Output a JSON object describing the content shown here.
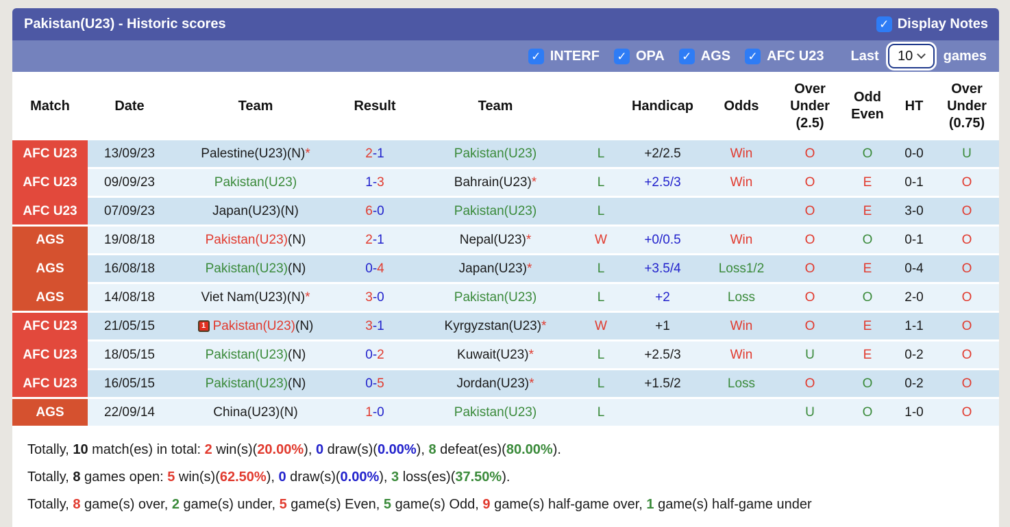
{
  "colors": {
    "black": "#1a1a1a",
    "red": "#e13a2e",
    "green": "#3a8a3a",
    "blue": "#2222cc",
    "badge_afc": "#e2493c",
    "badge_ags": "#d5512f",
    "row_dark": "#cfe3f1",
    "row_light": "#e9f3fa",
    "bar_dark": "#4d58a4",
    "bar_light": "#7482bd",
    "checkbox_blue": "#2e7cf5"
  },
  "header": {
    "title": "Pakistan(U23) - Historic scores",
    "display_notes_label": "Display Notes",
    "display_notes_checked": true,
    "check_glyph": "✓"
  },
  "filters": {
    "items": [
      {
        "label": "INTERF",
        "checked": true
      },
      {
        "label": "OPA",
        "checked": true
      },
      {
        "label": "AGS",
        "checked": true
      },
      {
        "label": "AFC U23",
        "checked": true
      }
    ],
    "last_label": "Last",
    "last_games_value": "10",
    "games_label": "games"
  },
  "table": {
    "columns": [
      "Match",
      "Date",
      "Team",
      "Result",
      "Team",
      "",
      "Handicap",
      "Odds",
      "Over Under (2.5)",
      "Odd Even",
      "HT",
      "Over Under (0.75)"
    ],
    "rows": [
      {
        "match": "AFC U23",
        "group": "afc",
        "date": "13/09/23",
        "team1": [
          {
            "t": "Palestine(U23)(N)",
            "c": "black"
          },
          {
            "t": "*",
            "c": "red"
          }
        ],
        "result": {
          "home": {
            "t": "2",
            "c": "red"
          },
          "away": {
            "t": "1",
            "c": "blue"
          }
        },
        "team2": [
          {
            "t": "Pakistan(U23)",
            "c": "green"
          }
        ],
        "wl": {
          "t": "L",
          "c": "green"
        },
        "handicap": {
          "t": "+2/2.5",
          "c": "black"
        },
        "odds": {
          "t": "Win",
          "c": "red"
        },
        "ou25": {
          "t": "O",
          "c": "red"
        },
        "odd_even": {
          "t": "O",
          "c": "green"
        },
        "ht": "0-0",
        "ou075": {
          "t": "U",
          "c": "green"
        }
      },
      {
        "match": "AFC U23",
        "group": "afc",
        "date": "09/09/23",
        "team1": [
          {
            "t": "Pakistan(U23)",
            "c": "green"
          }
        ],
        "result": {
          "home": {
            "t": "1",
            "c": "blue"
          },
          "away": {
            "t": "3",
            "c": "red"
          }
        },
        "team2": [
          {
            "t": "Bahrain(U23)",
            "c": "black"
          },
          {
            "t": "*",
            "c": "red"
          }
        ],
        "wl": {
          "t": "L",
          "c": "green"
        },
        "handicap": {
          "t": "+2.5/3",
          "c": "blue"
        },
        "odds": {
          "t": "Win",
          "c": "red"
        },
        "ou25": {
          "t": "O",
          "c": "red"
        },
        "odd_even": {
          "t": "E",
          "c": "red"
        },
        "ht": "0-1",
        "ou075": {
          "t": "O",
          "c": "red"
        }
      },
      {
        "match": "AFC U23",
        "group": "afc",
        "date": "07/09/23",
        "team1": [
          {
            "t": "Japan(U23)(N)",
            "c": "black"
          }
        ],
        "result": {
          "home": {
            "t": "6",
            "c": "red"
          },
          "away": {
            "t": "0",
            "c": "blue"
          }
        },
        "team2": [
          {
            "t": "Pakistan(U23)",
            "c": "green"
          }
        ],
        "wl": {
          "t": "L",
          "c": "green"
        },
        "handicap": {
          "t": "",
          "c": "black"
        },
        "odds": {
          "t": "",
          "c": "black"
        },
        "ou25": {
          "t": "O",
          "c": "red"
        },
        "odd_even": {
          "t": "E",
          "c": "red"
        },
        "ht": "3-0",
        "ou075": {
          "t": "O",
          "c": "red"
        }
      },
      {
        "match": "AGS",
        "group": "ags",
        "date": "19/08/18",
        "team1": [
          {
            "t": "Pakistan(U23)",
            "c": "red"
          },
          {
            "t": "(N)",
            "c": "black"
          }
        ],
        "result": {
          "home": {
            "t": "2",
            "c": "red"
          },
          "away": {
            "t": "1",
            "c": "blue"
          }
        },
        "team2": [
          {
            "t": "Nepal(U23)",
            "c": "black"
          },
          {
            "t": "*",
            "c": "red"
          }
        ],
        "wl": {
          "t": "W",
          "c": "red"
        },
        "handicap": {
          "t": "+0/0.5",
          "c": "blue"
        },
        "odds": {
          "t": "Win",
          "c": "red"
        },
        "ou25": {
          "t": "O",
          "c": "red"
        },
        "odd_even": {
          "t": "O",
          "c": "green"
        },
        "ht": "0-1",
        "ou075": {
          "t": "O",
          "c": "red"
        }
      },
      {
        "match": "AGS",
        "group": "ags",
        "date": "16/08/18",
        "team1": [
          {
            "t": "Pakistan(U23)",
            "c": "green"
          },
          {
            "t": "(N)",
            "c": "black"
          }
        ],
        "result": {
          "home": {
            "t": "0",
            "c": "blue"
          },
          "away": {
            "t": "4",
            "c": "red"
          }
        },
        "team2": [
          {
            "t": "Japan(U23)",
            "c": "black"
          },
          {
            "t": "*",
            "c": "red"
          }
        ],
        "wl": {
          "t": "L",
          "c": "green"
        },
        "handicap": {
          "t": "+3.5/4",
          "c": "blue"
        },
        "odds": {
          "t": "Loss1/2",
          "c": "green"
        },
        "ou25": {
          "t": "O",
          "c": "red"
        },
        "odd_even": {
          "t": "E",
          "c": "red"
        },
        "ht": "0-4",
        "ou075": {
          "t": "O",
          "c": "red"
        }
      },
      {
        "match": "AGS",
        "group": "ags",
        "date": "14/08/18",
        "team1": [
          {
            "t": "Viet Nam(U23)(N)",
            "c": "black"
          },
          {
            "t": "*",
            "c": "red"
          }
        ],
        "result": {
          "home": {
            "t": "3",
            "c": "red"
          },
          "away": {
            "t": "0",
            "c": "blue"
          }
        },
        "team2": [
          {
            "t": "Pakistan(U23)",
            "c": "green"
          }
        ],
        "wl": {
          "t": "L",
          "c": "green"
        },
        "handicap": {
          "t": "+2",
          "c": "blue"
        },
        "odds": {
          "t": "Loss",
          "c": "green"
        },
        "ou25": {
          "t": "O",
          "c": "red"
        },
        "odd_even": {
          "t": "O",
          "c": "green"
        },
        "ht": "2-0",
        "ou075": {
          "t": "O",
          "c": "red"
        }
      },
      {
        "match": "AFC U23",
        "group": "afc",
        "date": "21/05/15",
        "team1": [
          {
            "icon": "red-card",
            "t": "1"
          },
          {
            "t": "Pakistan(U23)",
            "c": "red"
          },
          {
            "t": "(N)",
            "c": "black"
          }
        ],
        "result": {
          "home": {
            "t": "3",
            "c": "red"
          },
          "away": {
            "t": "1",
            "c": "blue"
          }
        },
        "team2": [
          {
            "t": "Kyrgyzstan(U23)",
            "c": "black"
          },
          {
            "t": "*",
            "c": "red"
          }
        ],
        "wl": {
          "t": "W",
          "c": "red"
        },
        "handicap": {
          "t": "+1",
          "c": "black"
        },
        "odds": {
          "t": "Win",
          "c": "red"
        },
        "ou25": {
          "t": "O",
          "c": "red"
        },
        "odd_even": {
          "t": "E",
          "c": "red"
        },
        "ht": "1-1",
        "ou075": {
          "t": "O",
          "c": "red"
        }
      },
      {
        "match": "AFC U23",
        "group": "afc",
        "date": "18/05/15",
        "team1": [
          {
            "t": "Pakistan(U23)",
            "c": "green"
          },
          {
            "t": "(N)",
            "c": "black"
          }
        ],
        "result": {
          "home": {
            "t": "0",
            "c": "blue"
          },
          "away": {
            "t": "2",
            "c": "red"
          }
        },
        "team2": [
          {
            "t": "Kuwait(U23)",
            "c": "black"
          },
          {
            "t": "*",
            "c": "red"
          }
        ],
        "wl": {
          "t": "L",
          "c": "green"
        },
        "handicap": {
          "t": "+2.5/3",
          "c": "black"
        },
        "odds": {
          "t": "Win",
          "c": "red"
        },
        "ou25": {
          "t": "U",
          "c": "green"
        },
        "odd_even": {
          "t": "E",
          "c": "red"
        },
        "ht": "0-2",
        "ou075": {
          "t": "O",
          "c": "red"
        }
      },
      {
        "match": "AFC U23",
        "group": "afc",
        "date": "16/05/15",
        "team1": [
          {
            "t": "Pakistan(U23)",
            "c": "green"
          },
          {
            "t": "(N)",
            "c": "black"
          }
        ],
        "result": {
          "home": {
            "t": "0",
            "c": "blue"
          },
          "away": {
            "t": "5",
            "c": "red"
          }
        },
        "team2": [
          {
            "t": "Jordan(U23)",
            "c": "black"
          },
          {
            "t": "*",
            "c": "red"
          }
        ],
        "wl": {
          "t": "L",
          "c": "green"
        },
        "handicap": {
          "t": "+1.5/2",
          "c": "black"
        },
        "odds": {
          "t": "Loss",
          "c": "green"
        },
        "ou25": {
          "t": "O",
          "c": "red"
        },
        "odd_even": {
          "t": "O",
          "c": "green"
        },
        "ht": "0-2",
        "ou075": {
          "t": "O",
          "c": "red"
        }
      },
      {
        "match": "AGS",
        "group": "ags",
        "date": "22/09/14",
        "team1": [
          {
            "t": "China(U23)(N)",
            "c": "black"
          }
        ],
        "result": {
          "home": {
            "t": "1",
            "c": "red"
          },
          "away": {
            "t": "0",
            "c": "blue"
          }
        },
        "team2": [
          {
            "t": "Pakistan(U23)",
            "c": "green"
          }
        ],
        "wl": {
          "t": "L",
          "c": "green"
        },
        "handicap": {
          "t": "",
          "c": "black"
        },
        "odds": {
          "t": "",
          "c": "black"
        },
        "ou25": {
          "t": "U",
          "c": "green"
        },
        "odd_even": {
          "t": "O",
          "c": "green"
        },
        "ht": "1-0",
        "ou075": {
          "t": "O",
          "c": "red"
        }
      }
    ]
  },
  "summary": {
    "lines": [
      [
        {
          "t": "Totally, "
        },
        {
          "t": "10",
          "b": true
        },
        {
          "t": " match(es) in total: "
        },
        {
          "t": "2",
          "c": "red",
          "b": true
        },
        {
          "t": " win(s)("
        },
        {
          "t": "20.00%",
          "c": "red",
          "b": true
        },
        {
          "t": "), "
        },
        {
          "t": "0",
          "c": "blue",
          "b": true
        },
        {
          "t": " draw(s)("
        },
        {
          "t": "0.00%",
          "c": "blue",
          "b": true
        },
        {
          "t": "), "
        },
        {
          "t": "8",
          "c": "green",
          "b": true
        },
        {
          "t": " defeat(es)("
        },
        {
          "t": "80.00%",
          "c": "green",
          "b": true
        },
        {
          "t": ")."
        }
      ],
      [
        {
          "t": "Totally, "
        },
        {
          "t": "8",
          "b": true
        },
        {
          "t": " games open: "
        },
        {
          "t": "5",
          "c": "red",
          "b": true
        },
        {
          "t": " win(s)("
        },
        {
          "t": "62.50%",
          "c": "red",
          "b": true
        },
        {
          "t": "), "
        },
        {
          "t": "0",
          "c": "blue",
          "b": true
        },
        {
          "t": " draw(s)("
        },
        {
          "t": "0.00%",
          "c": "blue",
          "b": true
        },
        {
          "t": "), "
        },
        {
          "t": "3",
          "c": "green",
          "b": true
        },
        {
          "t": " loss(es)("
        },
        {
          "t": "37.50%",
          "c": "green",
          "b": true
        },
        {
          "t": ")."
        }
      ],
      [
        {
          "t": "Totally, "
        },
        {
          "t": "8",
          "c": "red",
          "b": true
        },
        {
          "t": " game(s) over, "
        },
        {
          "t": "2",
          "c": "green",
          "b": true
        },
        {
          "t": " game(s) under, "
        },
        {
          "t": "5",
          "c": "red",
          "b": true
        },
        {
          "t": " game(s) Even, "
        },
        {
          "t": "5",
          "c": "green",
          "b": true
        },
        {
          "t": " game(s) Odd, "
        },
        {
          "t": "9",
          "c": "red",
          "b": true
        },
        {
          "t": " game(s) half-game over, "
        },
        {
          "t": "1",
          "c": "green",
          "b": true
        },
        {
          "t": " game(s) half-game under"
        }
      ]
    ]
  }
}
